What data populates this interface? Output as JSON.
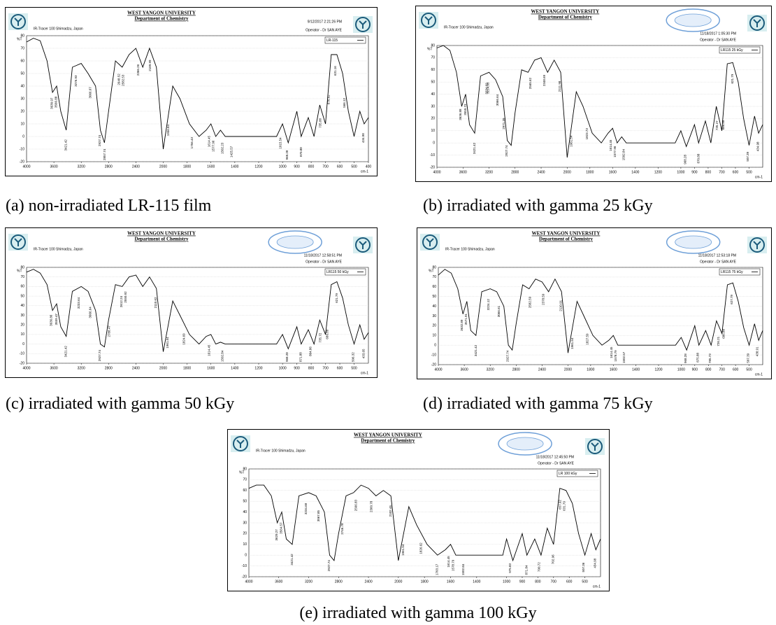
{
  "chart_data": [
    {
      "type": "line",
      "university": "WEST YANGON UNIVERSITY",
      "department": "Department of Chemistry",
      "instrument": "IR-Tracer 100 Shimadzu, Japan",
      "datetime": "9/12/2017 2:21:26 PM",
      "operator": "Operator - Dr SAN AYE",
      "y_label": "%T",
      "x_label": "cm-1",
      "caption": "(a) non-irradiated LR-115 film",
      "xlim": [
        4000,
        400
      ],
      "xticks": [
        4000,
        3600,
        3200,
        2800,
        2400,
        2000,
        1800,
        1600,
        1400,
        1200,
        1000,
        900,
        800,
        700,
        600,
        500,
        400
      ],
      "ylim": [
        -20,
        80
      ],
      "yticks": [
        -20,
        -10,
        0,
        10,
        20,
        30,
        40,
        50,
        60,
        70,
        80
      ],
      "grid": true,
      "x": [
        4000,
        3900,
        3800,
        3700,
        3620,
        3560,
        3500,
        3420,
        3330,
        3200,
        3100,
        2990,
        2920,
        2860,
        2800,
        2700,
        2600,
        2500,
        2400,
        2300,
        2200,
        2100,
        2000,
        1920,
        1860,
        1780,
        1700,
        1640,
        1600,
        1560,
        1520,
        1480,
        1400,
        1200,
        1050,
        1000,
        960,
        900,
        870,
        820,
        780,
        740,
        700,
        660,
        620,
        580,
        540,
        500,
        460,
        430,
        400
      ],
      "series": [
        {
          "name": "LR-115",
          "color": "#000000",
          "values": [
            75,
            78,
            76,
            60,
            35,
            40,
            20,
            5,
            55,
            58,
            50,
            40,
            5,
            -5,
            20,
            60,
            55,
            65,
            70,
            55,
            70,
            55,
            -10,
            40,
            30,
            10,
            0,
            5,
            10,
            0,
            5,
            0,
            0,
            0,
            0,
            10,
            -5,
            20,
            0,
            15,
            0,
            25,
            10,
            65,
            65,
            50,
            20,
            0,
            20,
            10,
            15
          ]
        }
      ],
      "peaks": [
        3630.97,
        3566.88,
        3421.42,
        3276.93,
        3066.67,
        2927.74,
        2857.74,
        2648.52,
        2582.53,
        2366.26,
        2189.99,
        1956.64,
        1756.43,
        1614.45,
        1577.96,
        1502.23,
        1425.57,
        1015.54,
        968.28,
        870.88,
        735.88,
        676.62,
        631.16,
        566.12,
        434.98
      ]
    },
    {
      "type": "line",
      "university": "WEST YANGON UNIVERSITY",
      "department": "Department of Chemistry",
      "instrument": "IR-Tracer 100 Shimadzu, Japan",
      "datetime": "11/18/2017 1:05:30 PM",
      "operator": "Operator - Dr SAN AYE",
      "y_label": "%T",
      "x_label": "cm-1",
      "caption": "(b) irradiated with gamma 25 kGy",
      "xlim": [
        4000,
        400
      ],
      "xticks": [
        4000,
        3600,
        3200,
        2800,
        2400,
        2000,
        1800,
        1600,
        1400,
        1200,
        1000,
        900,
        800,
        700,
        600,
        500
      ],
      "ylim": [
        -20,
        80
      ],
      "yticks": [
        -20,
        -10,
        0,
        10,
        20,
        30,
        40,
        50,
        60,
        70,
        80
      ],
      "grid": true,
      "x": [
        4000,
        3900,
        3800,
        3700,
        3620,
        3560,
        3500,
        3420,
        3330,
        3200,
        3100,
        2990,
        2920,
        2860,
        2800,
        2700,
        2600,
        2500,
        2400,
        2300,
        2200,
        2100,
        2000,
        1920,
        1860,
        1780,
        1700,
        1640,
        1600,
        1560,
        1520,
        1480,
        1400,
        1200,
        1050,
        1000,
        960,
        900,
        870,
        820,
        780,
        740,
        700,
        660,
        620,
        580,
        540,
        500,
        460,
        430,
        400
      ],
      "series": [
        {
          "name": "LR115 25 kGy",
          "color": "#000000",
          "values": [
            78,
            80,
            76,
            58,
            30,
            40,
            15,
            8,
            55,
            58,
            52,
            38,
            2,
            -2,
            25,
            60,
            58,
            68,
            70,
            58,
            68,
            58,
            -12,
            42,
            30,
            8,
            0,
            8,
            12,
            0,
            5,
            0,
            0,
            0,
            0,
            10,
            -3,
            15,
            0,
            18,
            0,
            30,
            10,
            65,
            66,
            50,
            20,
            -2,
            22,
            8,
            15
          ]
        }
      ],
      "peaks": [
        3636.88,
        3559.73,
        3421.42,
        3234.02,
        3214.93,
        3066.64,
        2971.39,
        2927.74,
        2565.62,
        2348.69,
        2111.98,
        1961.54,
        1823.73,
        1614.45,
        1577.96,
        1502.84,
        968.28,
        870.88,
        735.27,
        686.88,
        621.79,
        507.39,
        434.98
      ]
    },
    {
      "type": "line",
      "university": "WEST YANGON UNIVERSITY",
      "department": "Department of Chemistry",
      "instrument": "IR-Tracer 100 Shimadzu, Japan",
      "datetime": "11/18/2017 12:58:51 PM",
      "operator": "Operator - Dr SAN AYE",
      "y_label": "%T",
      "x_label": "cm-1",
      "caption": "(c) irradiated with gamma 50 kGy",
      "xlim": [
        4000,
        400
      ],
      "xticks": [
        4000,
        3600,
        3200,
        2800,
        2400,
        2000,
        1800,
        1600,
        1400,
        1200,
        1000,
        900,
        800,
        700,
        600,
        500
      ],
      "ylim": [
        -20,
        80
      ],
      "yticks": [
        -20,
        -10,
        0,
        10,
        20,
        30,
        40,
        50,
        60,
        70,
        80
      ],
      "grid": true,
      "x": [
        4000,
        3900,
        3800,
        3700,
        3620,
        3560,
        3500,
        3420,
        3330,
        3200,
        3100,
        2990,
        2920,
        2860,
        2800,
        2700,
        2600,
        2500,
        2400,
        2300,
        2200,
        2100,
        2000,
        1920,
        1860,
        1780,
        1700,
        1640,
        1600,
        1560,
        1520,
        1480,
        1400,
        1200,
        1050,
        1000,
        960,
        900,
        870,
        820,
        780,
        740,
        700,
        660,
        620,
        580,
        540,
        500,
        460,
        430,
        400
      ],
      "series": [
        {
          "name": "LR115 50 kGy",
          "color": "#000000",
          "values": [
            75,
            78,
            74,
            62,
            35,
            42,
            18,
            8,
            55,
            60,
            55,
            35,
            0,
            -3,
            25,
            62,
            60,
            70,
            72,
            60,
            70,
            58,
            -8,
            45,
            30,
            10,
            0,
            8,
            10,
            0,
            2,
            0,
            0,
            0,
            0,
            10,
            -5,
            18,
            0,
            15,
            0,
            25,
            10,
            62,
            65,
            48,
            20,
            0,
            20,
            5,
            12
          ]
        }
      ],
      "peaks": [
        3636.86,
        3559.47,
        3421.42,
        3233.64,
        3066.64,
        2927.74,
        2788.47,
        2612.24,
        2550.92,
        2110.62,
        1961.54,
        1824.69,
        1614.45,
        1502.84,
        968.28,
        871.88,
        804.86,
        735.72,
        686.89,
        621.79,
        506.32,
        433.65
      ]
    },
    {
      "type": "line",
      "university": "WEST YANGON UNIVERSITY",
      "department": "Department of Chemistry",
      "instrument": "IR-Tracer 100 Shimadzu, Japan",
      "datetime": "11/18/2017 12:53:18 PM",
      "operator": "Operator - Dr SAN AYE",
      "y_label": "%T",
      "x_label": "cm-1",
      "caption": "(d) irradiated with gamma 75 kGy",
      "xlim": [
        4000,
        400
      ],
      "xticks": [
        4000,
        3600,
        3200,
        2800,
        2400,
        2000,
        1800,
        1600,
        1400,
        1200,
        1000,
        900,
        800,
        700,
        600,
        500
      ],
      "ylim": [
        -20,
        80
      ],
      "yticks": [
        -20,
        -10,
        0,
        10,
        20,
        30,
        40,
        50,
        60,
        70,
        80
      ],
      "grid": true,
      "x": [
        4000,
        3900,
        3800,
        3700,
        3620,
        3560,
        3500,
        3420,
        3330,
        3200,
        3100,
        2990,
        2920,
        2860,
        2800,
        2700,
        2600,
        2500,
        2400,
        2300,
        2200,
        2100,
        2000,
        1920,
        1860,
        1780,
        1700,
        1640,
        1600,
        1560,
        1520,
        1480,
        1400,
        1200,
        1050,
        1000,
        960,
        900,
        870,
        820,
        780,
        740,
        700,
        660,
        620,
        580,
        540,
        500,
        460,
        430,
        400
      ],
      "series": [
        {
          "name": "LR115 75 kGy",
          "color": "#000000",
          "values": [
            72,
            78,
            74,
            58,
            32,
            45,
            15,
            10,
            55,
            58,
            55,
            40,
            0,
            -5,
            22,
            62,
            58,
            68,
            65,
            55,
            68,
            55,
            -8,
            45,
            30,
            10,
            0,
            5,
            10,
            0,
            0,
            0,
            0,
            0,
            0,
            8,
            -5,
            20,
            0,
            15,
            0,
            25,
            12,
            62,
            64,
            45,
            18,
            0,
            22,
            5,
            15
          ]
        }
      ],
      "peaks": [
        3632.89,
        3571.91,
        3421.42,
        3224.12,
        3066.61,
        2927.74,
        2582.59,
        2378.59,
        2110.91,
        1961.54,
        1827.59,
        1614.45,
        1578.79,
        1502.57,
        968.28,
        875.88,
        785.73,
        726.21,
        686.88,
        627.79,
        507.39,
        438.91
      ]
    },
    {
      "type": "line",
      "university": "WEST YANGON UNIVERSITY",
      "department": "Department of Chemistry",
      "instrument": "IR-Tracer 100 Shimadzu, Japan",
      "datetime": "11/18/2017 12:45:50 PM",
      "operator": "Operator - Dr SAN AYE",
      "y_label": "%T",
      "x_label": "cm-1",
      "caption": "(e) irradiated with gamma 100 kGy",
      "xlim": [
        4000,
        400
      ],
      "xticks": [
        4000,
        3600,
        3200,
        2800,
        2400,
        2000,
        1800,
        1600,
        1400,
        1000,
        900,
        800,
        700,
        600,
        500
      ],
      "ylim": [
        -20,
        80
      ],
      "yticks": [
        -20,
        -10,
        0,
        10,
        20,
        30,
        40,
        50,
        60,
        70,
        80
      ],
      "grid": true,
      "x": [
        4000,
        3900,
        3800,
        3700,
        3620,
        3560,
        3500,
        3420,
        3330,
        3200,
        3100,
        2990,
        2920,
        2860,
        2800,
        2700,
        2600,
        2500,
        2400,
        2300,
        2200,
        2100,
        2000,
        1920,
        1860,
        1780,
        1700,
        1640,
        1600,
        1560,
        1520,
        1480,
        1400,
        1200,
        1050,
        1000,
        960,
        900,
        870,
        820,
        780,
        740,
        700,
        660,
        620,
        580,
        540,
        500,
        460,
        430,
        400
      ],
      "series": [
        {
          "name": "LR 100 kGy",
          "color": "#000000",
          "values": [
            62,
            65,
            65,
            55,
            30,
            40,
            15,
            10,
            55,
            58,
            55,
            40,
            0,
            -5,
            20,
            55,
            58,
            65,
            62,
            55,
            60,
            55,
            -5,
            45,
            28,
            10,
            0,
            5,
            10,
            0,
            0,
            0,
            0,
            0,
            0,
            15,
            -5,
            20,
            0,
            15,
            0,
            25,
            10,
            62,
            60,
            48,
            20,
            0,
            20,
            5,
            15
          ]
        }
      ],
      "peaks": [
        3629.27,
        3564.57,
        3421.42,
        3234.68,
        3067.85,
        2927.74,
        2746.78,
        2566.83,
        2360.78,
        2102.45,
        1961.54,
        1826.62,
        1703.17,
        1614.45,
        1578.79,
        1502.84,
        975.83,
        871.84,
        790.72,
        702.96,
        657.92,
        631.79,
        507.36,
        434.98
      ]
    }
  ]
}
